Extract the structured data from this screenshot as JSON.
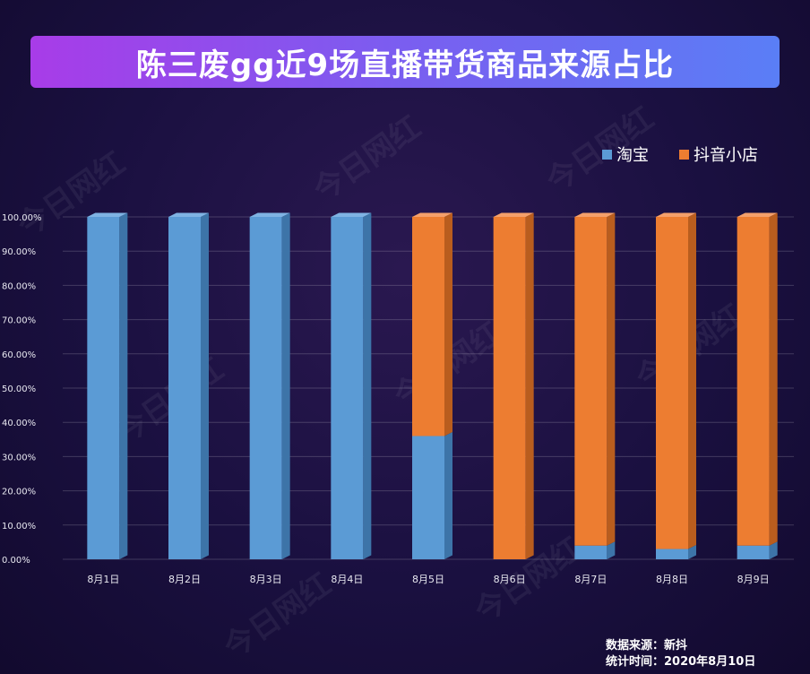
{
  "watermark": "今日网红",
  "source": {
    "line1": "数据来源：新抖",
    "line2": "统计时间：2020年8月10日"
  },
  "colors": {
    "taobao": "#5b9bd5",
    "douyin": "#ed7d31"
  },
  "chart_data": {
    "type": "bar",
    "stacked": true,
    "title": "陈三废gg近9场直播带货商品来源占比",
    "categories": [
      "8月1日",
      "8月2日",
      "8月3日",
      "8月4日",
      "8月5日",
      "8月6日",
      "8月7日",
      "8月8日",
      "8月9日"
    ],
    "series": [
      {
        "name": "淘宝",
        "values": [
          100,
          100,
          100,
          100,
          36,
          0,
          4,
          3,
          4
        ]
      },
      {
        "name": "抖音小店",
        "values": [
          0,
          0,
          0,
          0,
          64,
          100,
          96,
          97,
          96
        ]
      }
    ],
    "ylim": [
      0,
      100
    ],
    "yticks": [
      "0.00%",
      "10.00%",
      "20.00%",
      "30.00%",
      "40.00%",
      "50.00%",
      "60.00%",
      "70.00%",
      "80.00%",
      "90.00%",
      "100.00%"
    ],
    "legend_position": "top-right",
    "grid": true
  }
}
